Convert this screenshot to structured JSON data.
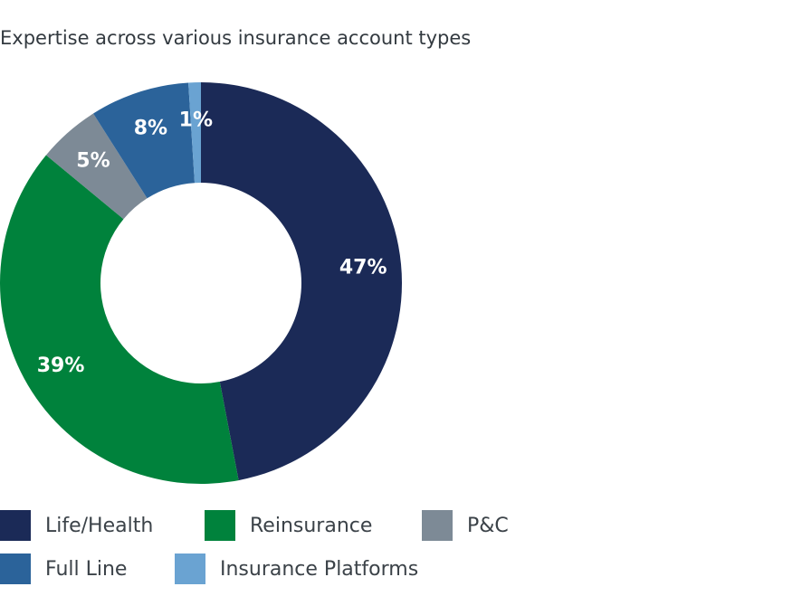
{
  "chart_data": {
    "type": "pie",
    "title": "Expertise across various insurance account types",
    "series": [
      {
        "categories": [
          "Life/Health",
          "Reinsurance",
          "P&C",
          "Full Line",
          "Insurance Platforms"
        ],
        "values": [
          47,
          39,
          5,
          8,
          1
        ],
        "labels": [
          "47%",
          "39%",
          "5%",
          "8%",
          "1%"
        ],
        "colors": [
          "#1b2a57",
          "#00823c",
          "#7d8a96",
          "#2b639a",
          "#6aa3d2"
        ]
      }
    ],
    "legend_position": "bottom-left",
    "donut": true
  },
  "legend": {
    "items": [
      {
        "label": "Life/Health",
        "color": "#1b2a57"
      },
      {
        "label": "Reinsurance",
        "color": "#00823c"
      },
      {
        "label": "P&C",
        "color": "#7d8a96"
      },
      {
        "label": "Full Line",
        "color": "#2b639a"
      },
      {
        "label": "Insurance Platforms",
        "color": "#6aa3d2"
      }
    ]
  }
}
